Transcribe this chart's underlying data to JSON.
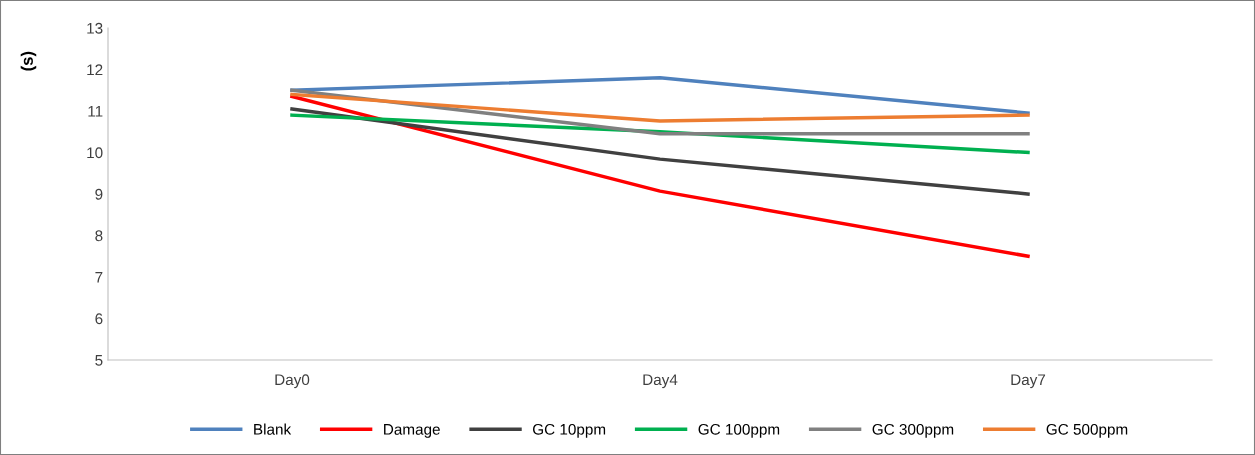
{
  "chart_data": {
    "type": "line",
    "ylabel": "(s)",
    "categories": [
      "Day0",
      "Day4",
      "Day7"
    ],
    "ylim": [
      5,
      13
    ],
    "yticks": [
      5,
      6,
      7,
      8,
      9,
      10,
      11,
      12,
      13
    ],
    "grid": false,
    "legend": "bottom",
    "marker": "none",
    "line_style": "solid",
    "series": [
      {
        "name": "Blank",
        "color": "#4f81bd",
        "values": [
          11.5,
          11.8,
          10.95
        ]
      },
      {
        "name": "Damage",
        "color": "#ff0000",
        "values": [
          11.35,
          9.07,
          7.5
        ]
      },
      {
        "name": "GC 10ppm",
        "color": "#404040",
        "values": [
          11.05,
          9.84,
          9.0
        ]
      },
      {
        "name": "GC 100ppm",
        "color": "#00b050",
        "values": [
          10.9,
          10.5,
          10.0
        ]
      },
      {
        "name": "GC 300ppm",
        "color": "#808080",
        "values": [
          11.5,
          10.45,
          10.45
        ]
      },
      {
        "name": "GC 500ppm",
        "color": "#ed7d31",
        "values": [
          11.4,
          10.76,
          10.9
        ]
      }
    ]
  }
}
